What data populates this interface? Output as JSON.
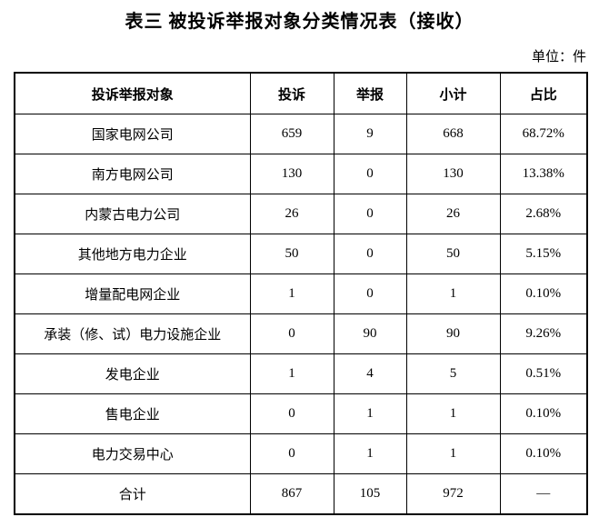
{
  "page": {
    "title": "表三 被投诉举报对象分类情况表（接收）",
    "unit_label": "单位：件"
  },
  "table": {
    "columns": [
      "投诉举报对象",
      "投诉",
      "举报",
      "小计",
      "占比"
    ],
    "rows": [
      [
        "国家电网公司",
        "659",
        "9",
        "668",
        "68.72%"
      ],
      [
        "南方电网公司",
        "130",
        "0",
        "130",
        "13.38%"
      ],
      [
        "内蒙古电力公司",
        "26",
        "0",
        "26",
        "2.68%"
      ],
      [
        "其他地方电力企业",
        "50",
        "0",
        "50",
        "5.15%"
      ],
      [
        "增量配电网企业",
        "1",
        "0",
        "1",
        "0.10%"
      ],
      [
        "承装（修、试）电力设施企业",
        "0",
        "90",
        "90",
        "9.26%"
      ],
      [
        "发电企业",
        "1",
        "4",
        "5",
        "0.51%"
      ],
      [
        "售电企业",
        "0",
        "1",
        "1",
        "0.10%"
      ],
      [
        "电力交易中心",
        "0",
        "1",
        "1",
        "0.10%"
      ],
      [
        "合计",
        "867",
        "105",
        "972",
        "—"
      ]
    ]
  }
}
